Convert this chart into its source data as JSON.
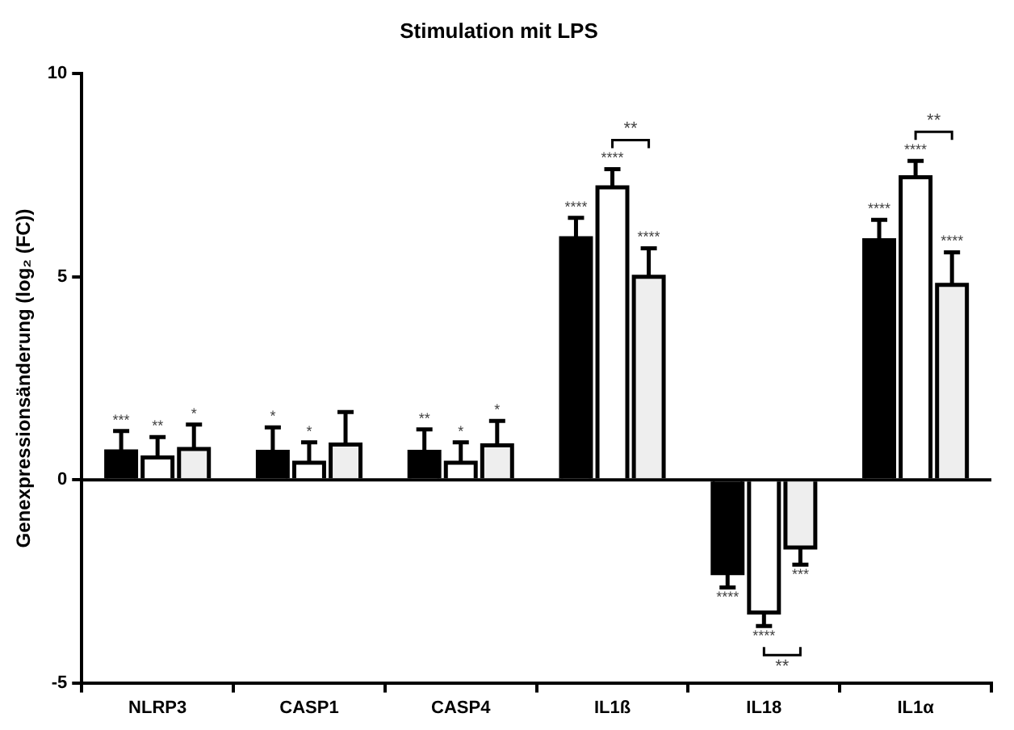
{
  "chart_data": {
    "type": "bar",
    "title": "Stimulation mit LPS",
    "ylabel": "Genexpressionsänderung (log₂ (FC))",
    "categories": [
      "NLRP3",
      "CASP1",
      "CASP4",
      "IL1ß",
      "IL18",
      "IL1α"
    ],
    "series": [
      {
        "color": "#000000",
        "values": [
          0.7,
          0.69,
          0.69,
          5.95,
          -2.3,
          5.9
        ],
        "errors": [
          [
            0.7,
            1.2
          ],
          [
            0.69,
            1.29
          ],
          [
            0.69,
            1.24
          ],
          [
            5.95,
            6.45
          ],
          [
            -2.65,
            -2.3
          ],
          [
            5.9,
            6.4
          ]
        ],
        "value_labels": [
          "***",
          "*",
          "**",
          "****",
          "****",
          "****"
        ]
      },
      {
        "color": "#ffffff",
        "values": [
          0.55,
          0.42,
          0.42,
          7.2,
          -3.27,
          7.45
        ],
        "errors": [
          [
            0.55,
            1.05
          ],
          [
            0.42,
            0.92
          ],
          [
            0.42,
            0.92
          ],
          [
            7.2,
            7.65
          ],
          [
            -3.6,
            -3.27
          ],
          [
            7.45,
            7.85
          ]
        ],
        "value_labels": [
          null,
          "*",
          "*",
          null,
          null,
          null
        ]
      },
      {
        "color": "#eeeeee",
        "values": [
          0.76,
          0.87,
          0.85,
          5.0,
          -1.67,
          4.8
        ],
        "errors": [
          [
            0.76,
            1.36
          ],
          [
            0.87,
            1.67
          ],
          [
            0.85,
            1.45
          ],
          [
            5.0,
            5.7
          ],
          [
            -2.09,
            -1.67
          ],
          [
            4.8,
            5.6
          ]
        ],
        "value_labels": [
          "*",
          null,
          null,
          "****",
          "***",
          "****"
        ]
      }
    ],
    "annotations": [
      {
        "text": "**",
        "x": "NLRP3",
        "y": 1.05
      },
      {
        "text": "*",
        "x": "CASP4",
        "y": 0.85
      },
      {
        "text": "****",
        "x": "IL1ß",
        "y": 7.65
      },
      {
        "text": "**",
        "x": "IL1ß",
        "y": 7.65
      },
      {
        "text": "****",
        "x": "IL18",
        "y": -3.6
      },
      {
        "text": "**",
        "x": "IL18",
        "y": -3.6
      },
      {
        "text": "****",
        "x": "IL1α",
        "y": 7.85
      },
      {
        "text": "**",
        "x": "IL1α",
        "y": 7.85
      }
    ],
    "ref_lines": [
      {
        "axis": "y",
        "value": 0,
        "color": "#000000"
      }
    ],
    "ylim": [
      -5,
      10
    ],
    "yticks": [
      -5,
      0,
      5,
      10
    ],
    "grid": false,
    "legend": false
  }
}
